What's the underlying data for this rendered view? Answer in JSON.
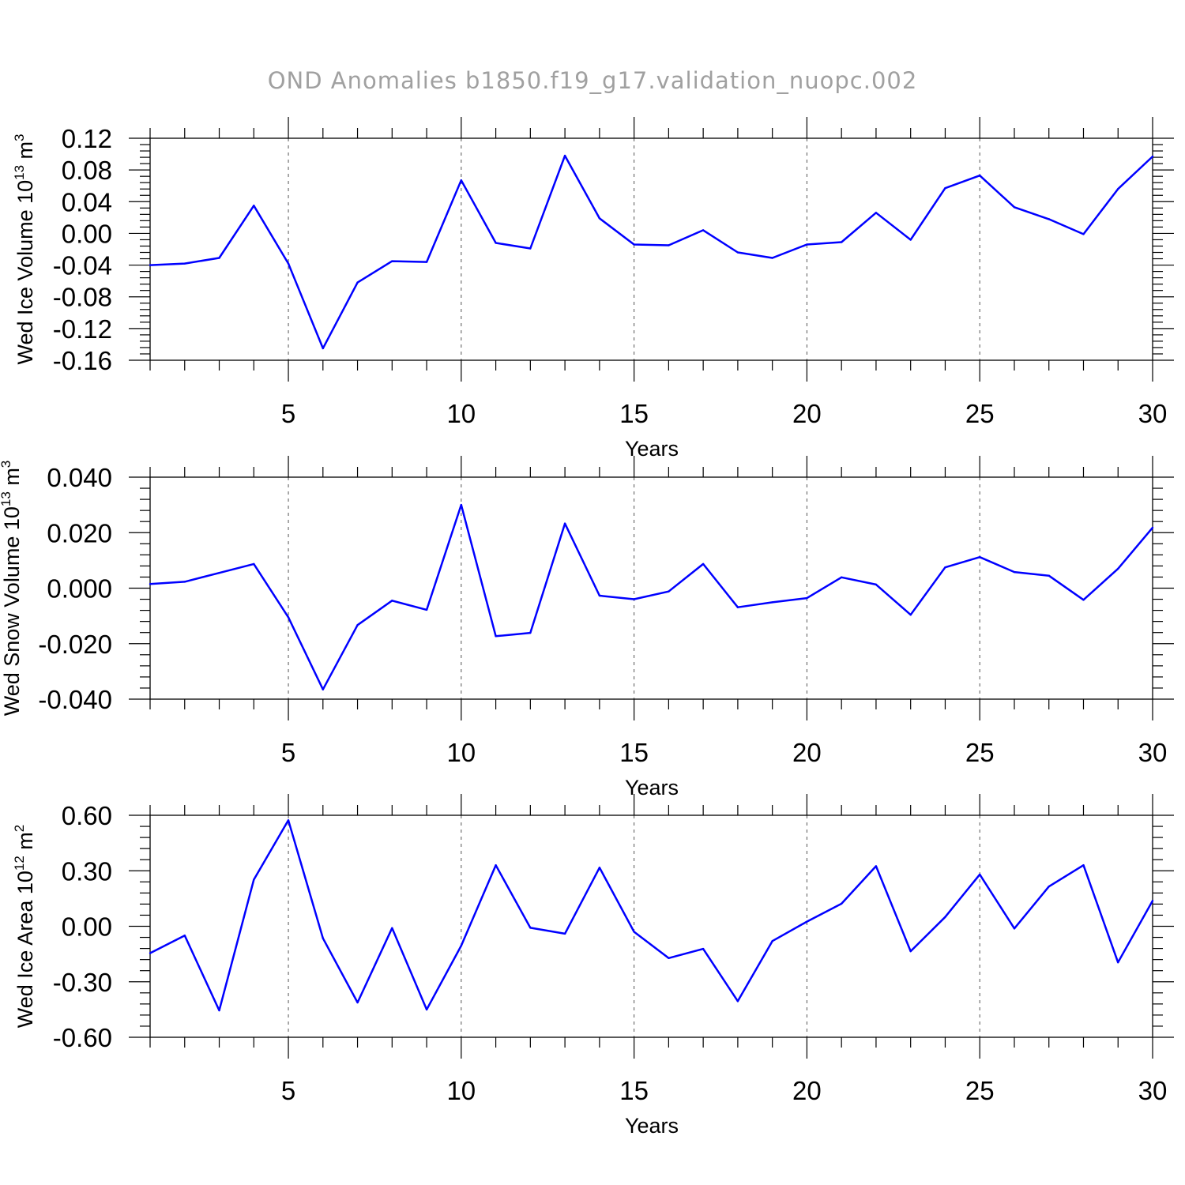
{
  "page": {
    "title": "OND Anomalies b1850.f19_g17.validation_nuopc.002"
  },
  "colors": {
    "series": "#0000ff",
    "grid": "#555555",
    "title": "#a0a0a0"
  },
  "chart_data": [
    {
      "type": "line",
      "ylabel": {
        "text": "Wed Ice Volume 10",
        "sup": "13",
        "unit": " m",
        "unit_sup": "3"
      },
      "xlabel": "Years",
      "xlim": [
        1,
        30
      ],
      "ylim": [
        -0.16,
        0.12
      ],
      "y_ticks": [
        -0.16,
        -0.12,
        -0.08,
        -0.04,
        0.0,
        0.04,
        0.08,
        0.12
      ],
      "y_tick_labels": [
        "-0.16",
        "-0.12",
        "-0.08",
        "-0.04",
        "0.00",
        "0.04",
        "0.08",
        "0.12"
      ],
      "x_ticks": [
        5,
        10,
        15,
        20,
        25,
        30
      ],
      "x_tick_labels": [
        "5",
        "10",
        "15",
        "20",
        "25",
        "30"
      ],
      "grid": "vertical dashed at x ticks",
      "x": [
        1,
        2,
        3,
        4,
        5,
        6,
        7,
        8,
        9,
        10,
        11,
        12,
        13,
        14,
        15,
        16,
        17,
        18,
        19,
        20,
        21,
        22,
        23,
        24,
        25,
        26,
        27,
        28,
        29,
        30
      ],
      "values": [
        -0.04,
        -0.038,
        -0.031,
        0.035,
        -0.038,
        -0.145,
        -0.062,
        -0.035,
        -0.036,
        0.067,
        -0.012,
        -0.019,
        0.098,
        0.019,
        -0.014,
        -0.015,
        0.004,
        -0.024,
        -0.031,
        -0.014,
        -0.011,
        0.026,
        -0.008,
        0.057,
        0.073,
        0.033,
        0.018,
        -0.001,
        0.056,
        0.097
      ]
    },
    {
      "type": "line",
      "ylabel": {
        "text": "Wed Snow Volume 10",
        "sup": "13",
        "unit": " m",
        "unit_sup": "3"
      },
      "xlabel": "Years",
      "xlim": [
        1,
        30
      ],
      "ylim": [
        -0.04,
        0.04
      ],
      "y_ticks": [
        -0.04,
        -0.02,
        0.0,
        0.02,
        0.04
      ],
      "y_tick_labels": [
        "-0.040",
        "-0.020",
        "0.000",
        "0.020",
        "0.040"
      ],
      "x_ticks": [
        5,
        10,
        15,
        20,
        25,
        30
      ],
      "x_tick_labels": [
        "5",
        "10",
        "15",
        "20",
        "25",
        "30"
      ],
      "grid": "vertical dashed at x ticks",
      "x": [
        1,
        2,
        3,
        4,
        5,
        6,
        7,
        8,
        9,
        10,
        11,
        12,
        13,
        14,
        15,
        16,
        17,
        18,
        19,
        20,
        21,
        22,
        23,
        24,
        25,
        26,
        27,
        28,
        29,
        30
      ],
      "values": [
        0.0015,
        0.0023,
        0.0055,
        0.0087,
        -0.0105,
        -0.0365,
        -0.0133,
        -0.0045,
        -0.0078,
        0.03,
        -0.0173,
        -0.0161,
        0.0233,
        -0.0027,
        -0.004,
        -0.0012,
        0.0087,
        -0.0069,
        -0.0051,
        -0.0036,
        0.0039,
        0.0013,
        -0.0096,
        0.0075,
        0.0112,
        0.0058,
        0.0045,
        -0.0042,
        0.007,
        0.0218
      ]
    },
    {
      "type": "line",
      "ylabel": {
        "text": "Wed Ice Area 10",
        "sup": "12",
        "unit": " m",
        "unit_sup": "2"
      },
      "xlabel": "Years",
      "xlim": [
        1,
        30
      ],
      "ylim": [
        -0.6,
        0.6
      ],
      "y_ticks": [
        -0.6,
        -0.3,
        0.0,
        0.3,
        0.6
      ],
      "y_tick_labels": [
        "-0.60",
        "-0.30",
        "0.00",
        "0.30",
        "0.60"
      ],
      "x_ticks": [
        5,
        10,
        15,
        20,
        25,
        30
      ],
      "x_tick_labels": [
        "5",
        "10",
        "15",
        "20",
        "25",
        "30"
      ],
      "grid": "vertical dashed at x ticks",
      "x": [
        1,
        2,
        3,
        4,
        5,
        6,
        7,
        8,
        9,
        10,
        11,
        12,
        13,
        14,
        15,
        16,
        17,
        18,
        19,
        20,
        21,
        22,
        23,
        24,
        25,
        26,
        27,
        28,
        29,
        30
      ],
      "values": [
        -0.145,
        -0.05,
        -0.455,
        0.252,
        0.573,
        -0.065,
        -0.412,
        -0.01,
        -0.45,
        -0.105,
        0.33,
        -0.008,
        -0.04,
        0.317,
        -0.03,
        -0.172,
        -0.122,
        -0.405,
        -0.08,
        0.025,
        0.122,
        0.325,
        -0.135,
        0.05,
        0.28,
        -0.012,
        0.215,
        0.33,
        -0.195,
        0.138
      ]
    }
  ]
}
